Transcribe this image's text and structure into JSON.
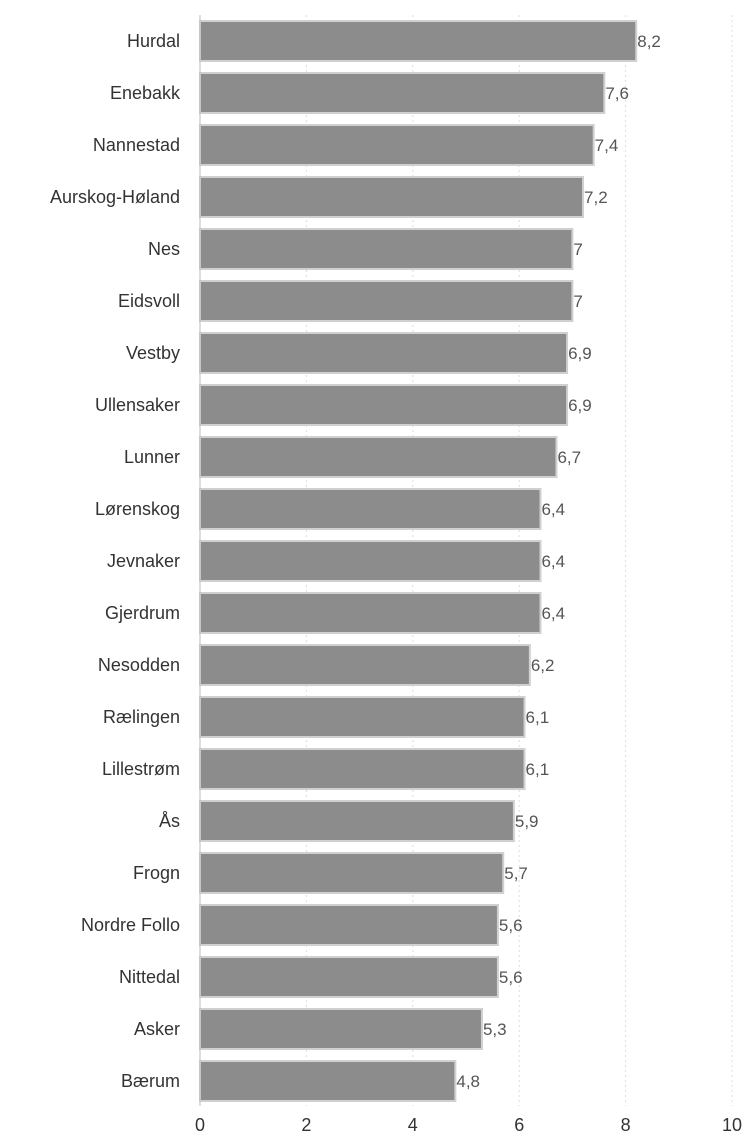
{
  "chart_data": {
    "type": "bar",
    "orientation": "horizontal",
    "categories": [
      "Hurdal",
      "Enebakk",
      "Nannestad",
      "Aurskog-Høland",
      "Nes",
      "Eidsvoll",
      "Vestby",
      "Ullensaker",
      "Lunner",
      "Lørenskog",
      "Jevnaker",
      "Gjerdrum",
      "Nesodden",
      "Rælingen",
      "Lillestrøm",
      "Ås",
      "Frogn",
      "Nordre Follo",
      "Nittedal",
      "Asker",
      "Bærum"
    ],
    "values": [
      8.2,
      7.6,
      7.4,
      7.2,
      7,
      7,
      6.9,
      6.9,
      6.7,
      6.4,
      6.4,
      6.4,
      6.2,
      6.1,
      6.1,
      5.9,
      5.7,
      5.6,
      5.6,
      5.3,
      4.8
    ],
    "value_labels": [
      "8,2",
      "7,6",
      "7,4",
      "7,2",
      "7",
      "7",
      "6,9",
      "6,9",
      "6,7",
      "6,4",
      "6,4",
      "6,4",
      "6,2",
      "6,1",
      "6,1",
      "5,9",
      "5,7",
      "5,6",
      "5,6",
      "5,3",
      "4,8"
    ],
    "xlim": [
      0,
      10
    ],
    "xticks": [
      0,
      2,
      4,
      6,
      8,
      10
    ],
    "grid": true,
    "title": "",
    "xlabel": "",
    "ylabel": "",
    "bar_color": "#8c8c8c",
    "bar_edge_color": "#d0d0d0"
  }
}
